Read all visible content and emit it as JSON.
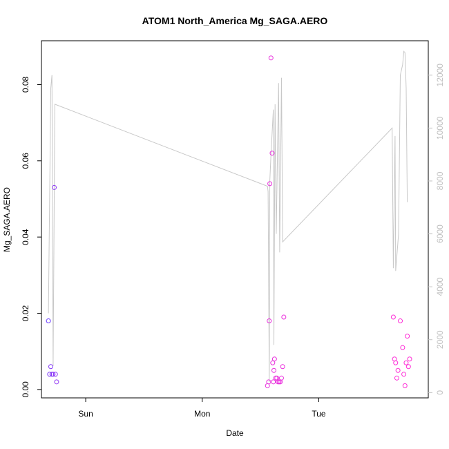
{
  "chart_data": {
    "type": "scatter",
    "title": "ATOM1 North_America Mg_SAGA.AERO",
    "xlabel": "Date",
    "ylabel": "Mg_SAGA.AERO",
    "x_ticks": [
      {
        "label": "Sun",
        "x": 1.0
      },
      {
        "label": "Mon",
        "x": 2.0
      },
      {
        "label": "Tue",
        "x": 3.0
      }
    ],
    "xlim": [
      0.62,
      3.94
    ],
    "ylim": [
      -0.0022,
      0.0915
    ],
    "y_ticks": [
      0.0,
      0.02,
      0.04,
      0.06,
      0.08
    ],
    "y_tick_labels": [
      "0.00",
      "0.02",
      "0.04",
      "0.06",
      "0.08"
    ],
    "y2lim": [
      -200,
      13300
    ],
    "y2_ticks": [
      0,
      2000,
      4000,
      6000,
      8000,
      10000,
      12000
    ],
    "y2_tick_labels": [
      "0",
      "2000",
      "4000",
      "6000",
      "8000",
      "10000",
      "12000"
    ],
    "grid": false,
    "colors": {
      "line": "#c8c8c8",
      "right_axis": "#c0c0c0",
      "points_start": "#6a3cff",
      "points_end": "#ff2bd6",
      "axis": "#000000"
    },
    "series": [
      {
        "kind": "points",
        "points": [
          {
            "x": 0.68,
            "y": 0.018
          },
          {
            "x": 0.69,
            "y": 0.004
          },
          {
            "x": 0.7,
            "y": 0.006
          },
          {
            "x": 0.71,
            "y": 0.004
          },
          {
            "x": 0.72,
            "y": 0.004
          },
          {
            "x": 0.73,
            "y": 0.053
          },
          {
            "x": 0.74,
            "y": 0.004
          },
          {
            "x": 0.75,
            "y": 0.002
          },
          {
            "x": 2.56,
            "y": 0.001
          },
          {
            "x": 2.57,
            "y": 0.002
          },
          {
            "x": 2.575,
            "y": 0.018
          },
          {
            "x": 2.58,
            "y": 0.054
          },
          {
            "x": 2.59,
            "y": 0.087
          },
          {
            "x": 2.6,
            "y": 0.062
          },
          {
            "x": 2.605,
            "y": 0.007
          },
          {
            "x": 2.61,
            "y": 0.002
          },
          {
            "x": 2.615,
            "y": 0.005
          },
          {
            "x": 2.62,
            "y": 0.008
          },
          {
            "x": 2.63,
            "y": 0.003
          },
          {
            "x": 2.64,
            "y": 0.003
          },
          {
            "x": 2.65,
            "y": 0.002
          },
          {
            "x": 2.66,
            "y": 0.002
          },
          {
            "x": 2.67,
            "y": 0.002
          },
          {
            "x": 2.68,
            "y": 0.003
          },
          {
            "x": 2.69,
            "y": 0.006
          },
          {
            "x": 2.7,
            "y": 0.019
          },
          {
            "x": 3.64,
            "y": 0.019
          },
          {
            "x": 3.65,
            "y": 0.008
          },
          {
            "x": 3.66,
            "y": 0.007
          },
          {
            "x": 3.67,
            "y": 0.003
          },
          {
            "x": 3.68,
            "y": 0.005
          },
          {
            "x": 3.7,
            "y": 0.018
          },
          {
            "x": 3.72,
            "y": 0.011
          },
          {
            "x": 3.73,
            "y": 0.004
          },
          {
            "x": 3.74,
            "y": 0.001
          },
          {
            "x": 3.75,
            "y": 0.007
          },
          {
            "x": 3.76,
            "y": 0.014
          },
          {
            "x": 3.77,
            "y": 0.006
          },
          {
            "x": 3.78,
            "y": 0.008
          }
        ]
      },
      {
        "kind": "line",
        "axis": "right",
        "points": [
          {
            "x": 0.68,
            "y": 3000
          },
          {
            "x": 0.7,
            "y": 11500
          },
          {
            "x": 0.71,
            "y": 12000
          },
          {
            "x": 0.72,
            "y": 1000
          },
          {
            "x": 0.735,
            "y": 10900
          },
          {
            "x": 2.56,
            "y": 7800
          },
          {
            "x": 2.565,
            "y": 7600
          },
          {
            "x": 2.575,
            "y": 400
          },
          {
            "x": 2.58,
            "y": 8000
          },
          {
            "x": 2.59,
            "y": 9000
          },
          {
            "x": 2.61,
            "y": 10700
          },
          {
            "x": 2.615,
            "y": 1800
          },
          {
            "x": 2.625,
            "y": 10900
          },
          {
            "x": 2.635,
            "y": 6000
          },
          {
            "x": 2.655,
            "y": 11700
          },
          {
            "x": 2.665,
            "y": 5300
          },
          {
            "x": 2.68,
            "y": 11900
          },
          {
            "x": 2.69,
            "y": 5700
          },
          {
            "x": 3.63,
            "y": 10000
          },
          {
            "x": 3.64,
            "y": 4700
          },
          {
            "x": 3.655,
            "y": 9700
          },
          {
            "x": 3.66,
            "y": 4600
          },
          {
            "x": 3.685,
            "y": 6000
          },
          {
            "x": 3.7,
            "y": 12000
          },
          {
            "x": 3.72,
            "y": 12400
          },
          {
            "x": 3.73,
            "y": 12900
          },
          {
            "x": 3.74,
            "y": 12850
          },
          {
            "x": 3.75,
            "y": 11500
          },
          {
            "x": 3.76,
            "y": 7200
          }
        ]
      }
    ]
  }
}
